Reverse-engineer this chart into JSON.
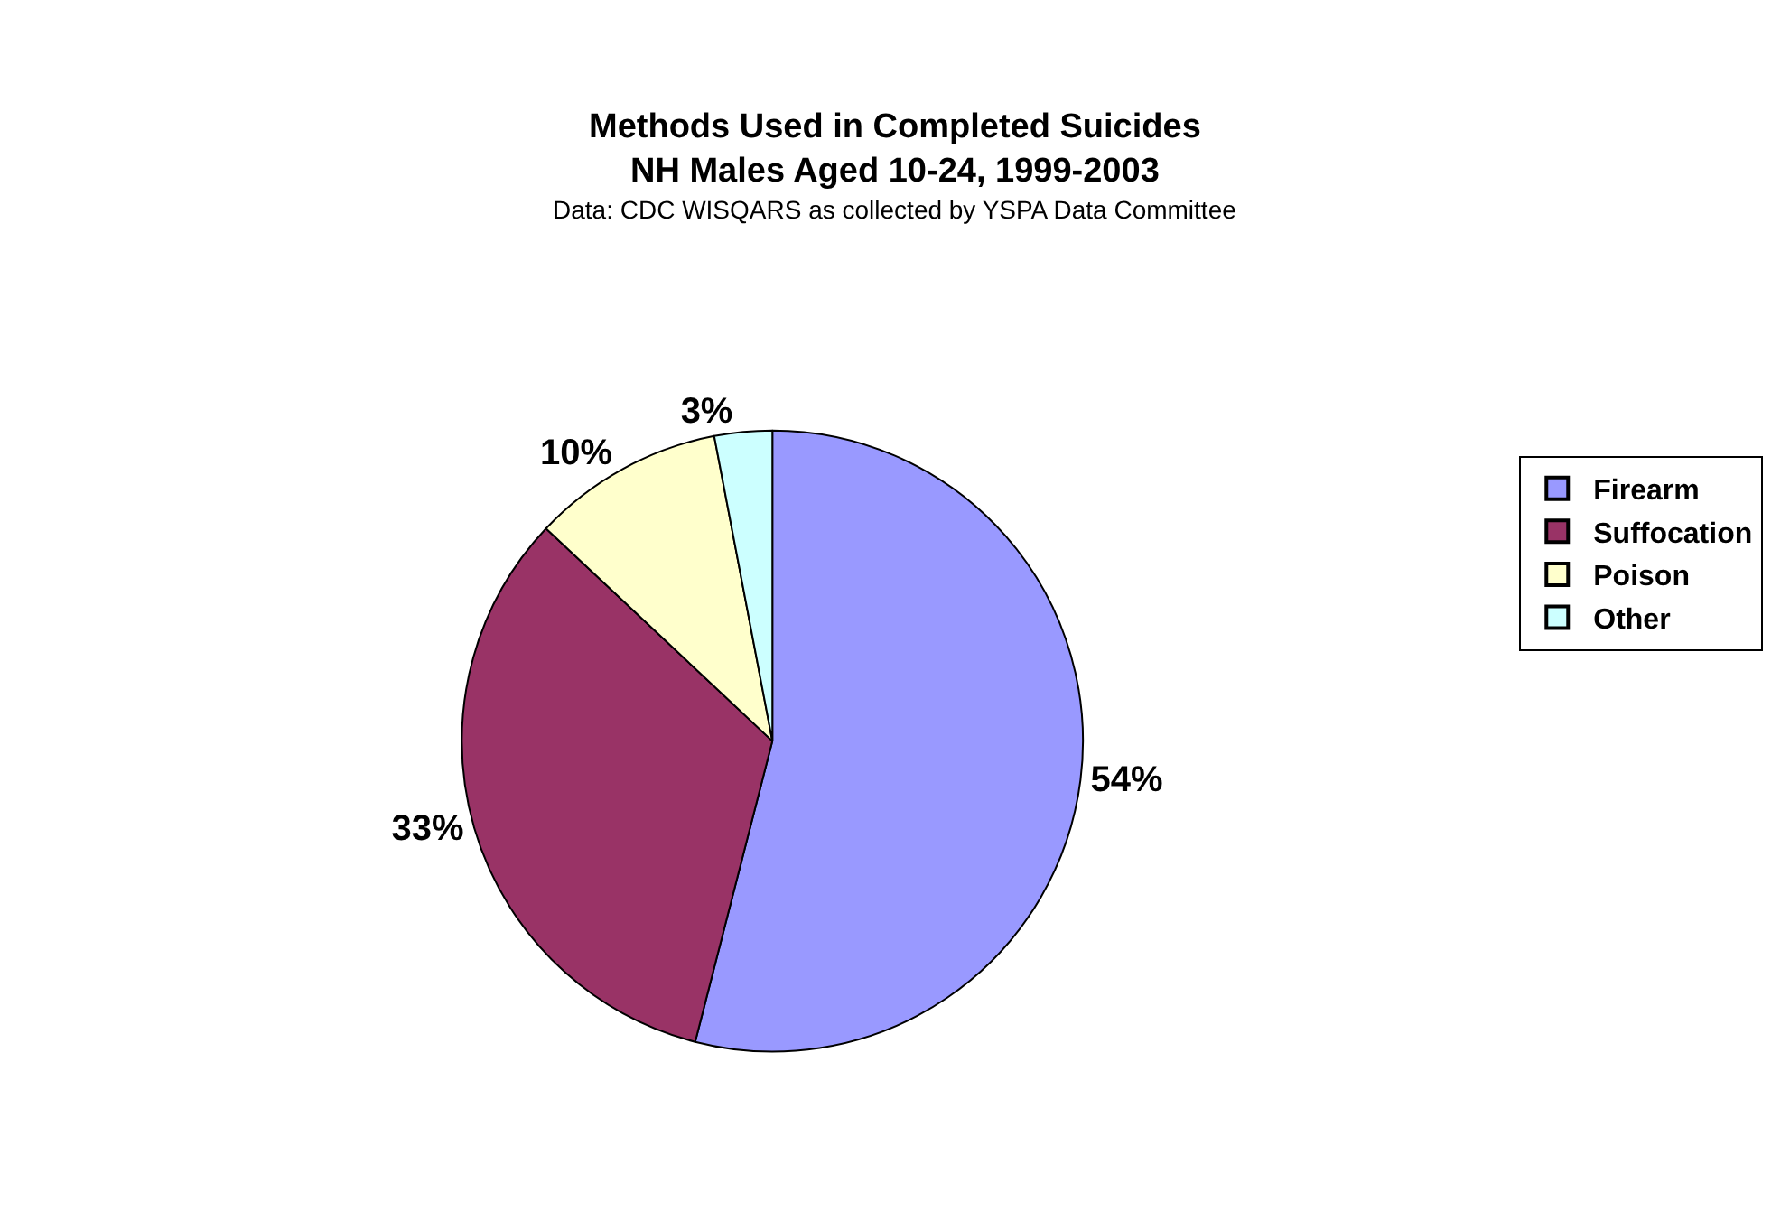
{
  "chart_data": {
    "type": "pie",
    "title": "Methods Used in Completed Suicides\nNH Males Aged 10-24, 1999-2003",
    "subtitle": "Data: CDC WISQARS as collected by YSPA Data Committee",
    "categories": [
      "Firearm",
      "Suffocation",
      "Poison",
      "Other"
    ],
    "values": [
      54,
      33,
      10,
      3
    ],
    "value_labels": [
      "54%",
      "33%",
      "10%",
      "3%"
    ],
    "colors": [
      "#9999ff",
      "#993366",
      "#ffffcc",
      "#ccffff"
    ],
    "legend": "right"
  }
}
